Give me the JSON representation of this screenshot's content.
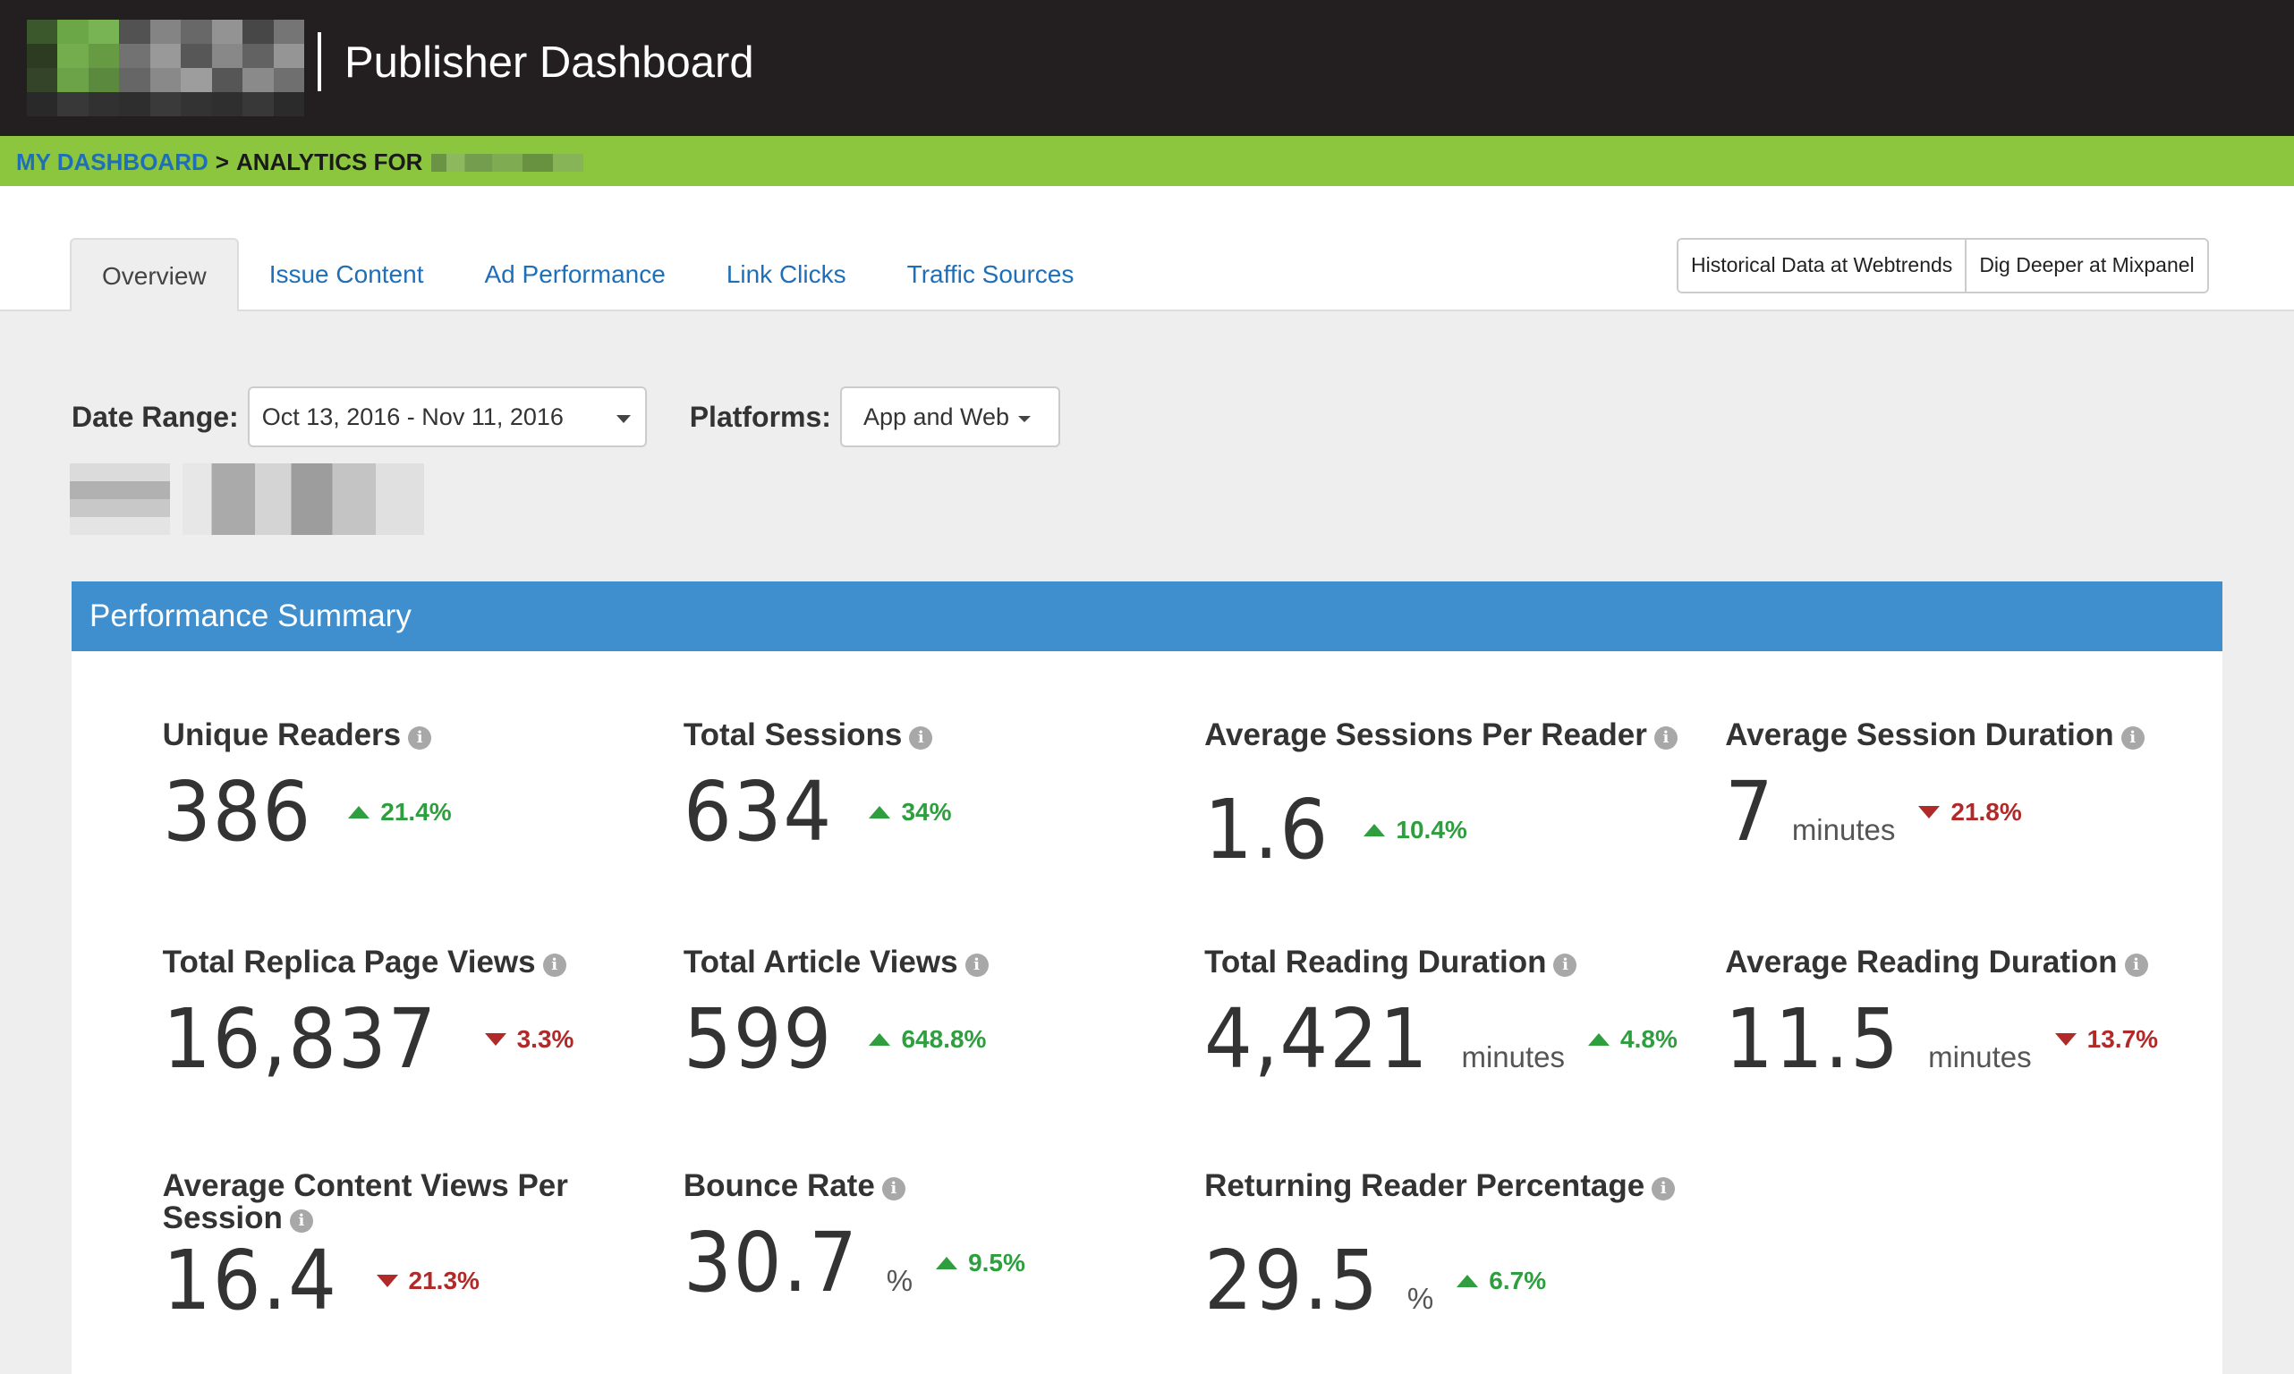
{
  "header": {
    "title": "Publisher Dashboard"
  },
  "breadcrumb": {
    "home": "MY DASHBOARD",
    "separator": ">",
    "current": "ANALYTICS FOR"
  },
  "tabs": [
    {
      "label": "Overview",
      "active": true
    },
    {
      "label": "Issue Content",
      "active": false
    },
    {
      "label": "Ad Performance",
      "active": false
    },
    {
      "label": "Link Clicks",
      "active": false
    },
    {
      "label": "Traffic Sources",
      "active": false
    }
  ],
  "external_buttons": [
    {
      "label": "Historical Data at Webtrends"
    },
    {
      "label": "Dig Deeper at Mixpanel"
    }
  ],
  "filters": {
    "date_label": "Date Range:",
    "date_value": "Oct 13, 2016 - Nov 11, 2016",
    "platform_label": "Platforms:",
    "platform_value": "App and Web"
  },
  "panel": {
    "title": "Performance Summary"
  },
  "metrics": [
    {
      "label": "Unique Readers",
      "value": "386",
      "unit": "",
      "change": "21.4%",
      "direction": "up"
    },
    {
      "label": "Total Sessions",
      "value": "634",
      "unit": "",
      "change": "34%",
      "direction": "up"
    },
    {
      "label": "Average Sessions Per Reader",
      "value": "1.6",
      "unit": "",
      "change": "10.4%",
      "direction": "up"
    },
    {
      "label": "Average Session Duration",
      "value": "7",
      "unit": "minutes",
      "change": "21.8%",
      "direction": "down"
    },
    {
      "label": "Total Replica Page Views",
      "value": "16,837",
      "unit": "",
      "change": "3.3%",
      "direction": "down"
    },
    {
      "label": "Total Article Views",
      "value": "599",
      "unit": "",
      "change": "648.8%",
      "direction": "up"
    },
    {
      "label": "Total Reading Duration",
      "value": "4,421",
      "unit": "minutes",
      "change": "4.8%",
      "direction": "up"
    },
    {
      "label": "Average Reading Duration",
      "value": "11.5",
      "unit": "minutes",
      "change": "13.7%",
      "direction": "down"
    },
    {
      "label": "Average Content Views Per Session",
      "value": "16.4",
      "unit": "",
      "change": "21.3%",
      "direction": "down"
    },
    {
      "label": "Bounce Rate",
      "value": "30.7",
      "unit": "%",
      "change": "9.5%",
      "direction": "up"
    },
    {
      "label": "Returning Reader Percentage",
      "value": "29.5",
      "unit": "%",
      "change": "6.7%",
      "direction": "up"
    }
  ],
  "colors": {
    "header_bg": "#231f20",
    "breadcrumb_bg": "#8cc63f",
    "panel_header_bg": "#3f8fcf",
    "link": "#1f6fb8",
    "up": "#2e9e3f",
    "down": "#b02a2a"
  },
  "icons": {
    "info": "info-circle-icon",
    "up": "triangle-up-icon",
    "down": "triangle-down-icon",
    "caret": "caret-down-icon"
  }
}
